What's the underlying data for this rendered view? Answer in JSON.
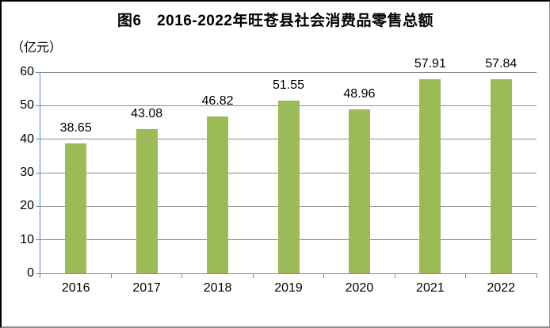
{
  "chart_data": {
    "type": "bar",
    "title": "图6　2016-2022年旺苍县社会消费品零售总额",
    "unit_label": "（亿元）",
    "categories": [
      "2016",
      "2017",
      "2018",
      "2019",
      "2020",
      "2021",
      "2022"
    ],
    "values": [
      38.65,
      43.08,
      46.82,
      51.55,
      48.96,
      57.91,
      57.84
    ],
    "value_labels": [
      "38.65",
      "43.08",
      "46.82",
      "51.55",
      "48.96",
      "57.91",
      "57.84"
    ],
    "xlabel": "",
    "ylabel": "（亿元）",
    "ylim": [
      0,
      60
    ],
    "yticks": [
      0,
      10,
      20,
      30,
      40,
      50,
      60
    ],
    "ytick_labels": [
      "0",
      "10",
      "20",
      "30",
      "40",
      "50",
      "60"
    ],
    "grid": "horizontal",
    "legend": "none",
    "colors": {
      "bar": "#9bbb59",
      "y_axis": "#5b87c0",
      "x_axis": "#8c8c8c",
      "gridline": "#8c8c8c",
      "text": "#000000",
      "background": "#ffffff"
    }
  }
}
